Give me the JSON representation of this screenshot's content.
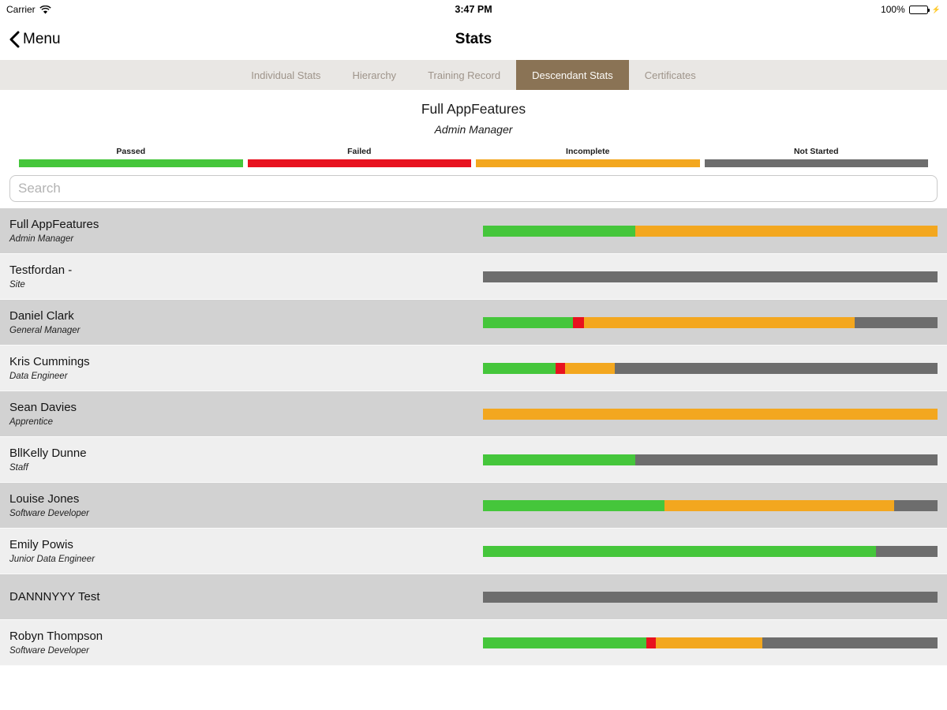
{
  "status_bar": {
    "carrier": "Carrier",
    "time": "3:47 PM",
    "battery": "100%"
  },
  "nav": {
    "back_label": "Menu",
    "title": "Stats"
  },
  "tabs": [
    {
      "label": "Individual Stats",
      "active": false
    },
    {
      "label": "Hierarchy",
      "active": false
    },
    {
      "label": "Training Record",
      "active": false
    },
    {
      "label": "Descendant Stats",
      "active": true
    },
    {
      "label": "Certificates",
      "active": false
    }
  ],
  "tab_colors": {
    "active_bg": "#8a7355",
    "active_text": "#fdfcf9",
    "inactive_text": "#9e948a"
  },
  "header": {
    "title": "Full AppFeatures",
    "subtitle": "Admin Manager"
  },
  "status_colors": {
    "passed": "#45c63b",
    "failed": "#e8121f",
    "incomplete": "#f3a71f",
    "not_started": "#6d6d6d"
  },
  "legend": [
    {
      "label": "Passed",
      "status": "passed"
    },
    {
      "label": "Failed",
      "status": "failed"
    },
    {
      "label": "Incomplete",
      "status": "incomplete"
    },
    {
      "label": "Not Started",
      "status": "not_started"
    }
  ],
  "search": {
    "placeholder": "Search"
  },
  "rows": [
    {
      "name": "Full AppFeatures",
      "role": "Admin Manager",
      "segments": [
        {
          "status": "passed",
          "pct": 33.5
        },
        {
          "status": "incomplete",
          "pct": 66.5
        }
      ]
    },
    {
      "name": "Testfordan -",
      "role": "Site",
      "segments": [
        {
          "status": "not_started",
          "pct": 100
        }
      ]
    },
    {
      "name": "Daniel Clark",
      "role": "General Manager",
      "segments": [
        {
          "status": "passed",
          "pct": 19.8
        },
        {
          "status": "failed",
          "pct": 2.4
        },
        {
          "status": "incomplete",
          "pct": 59.6
        },
        {
          "status": "not_started",
          "pct": 18.2
        }
      ]
    },
    {
      "name": "Kris Cummings",
      "role": "Data Engineer",
      "segments": [
        {
          "status": "passed",
          "pct": 16
        },
        {
          "status": "failed",
          "pct": 2
        },
        {
          "status": "incomplete",
          "pct": 11
        },
        {
          "status": "not_started",
          "pct": 71
        }
      ]
    },
    {
      "name": "Sean Davies",
      "role": "Apprentice",
      "segments": [
        {
          "status": "incomplete",
          "pct": 100
        }
      ]
    },
    {
      "name": "BllKelly Dunne",
      "role": "Staff",
      "segments": [
        {
          "status": "passed",
          "pct": 33.5
        },
        {
          "status": "not_started",
          "pct": 66.5
        }
      ]
    },
    {
      "name": "Louise Jones",
      "role": "Software Developer",
      "segments": [
        {
          "status": "passed",
          "pct": 40
        },
        {
          "status": "incomplete",
          "pct": 50.5
        },
        {
          "status": "not_started",
          "pct": 9.5
        }
      ]
    },
    {
      "name": "Emily Powis",
      "role": "Junior Data Engineer",
      "segments": [
        {
          "status": "passed",
          "pct": 86.5
        },
        {
          "status": "not_started",
          "pct": 13.5
        }
      ]
    },
    {
      "name": "DANNNYYY Test",
      "role": "",
      "segments": [
        {
          "status": "not_started",
          "pct": 100
        }
      ]
    },
    {
      "name": "Robyn Thompson",
      "role": "Software Developer",
      "segments": [
        {
          "status": "passed",
          "pct": 36
        },
        {
          "status": "failed",
          "pct": 2
        },
        {
          "status": "incomplete",
          "pct": 23.5
        },
        {
          "status": "not_started",
          "pct": 38.5
        }
      ]
    }
  ]
}
